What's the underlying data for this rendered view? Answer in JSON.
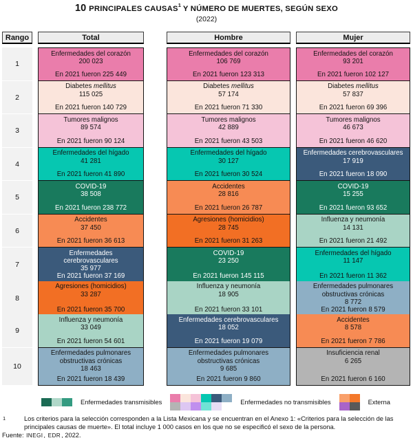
{
  "header": {
    "title_num": "10",
    "title_main": "PRINCIPALES CAUSAS",
    "title_sup": "1",
    "title_rest": "Y NÚMERO DE MUERTES, SEGÚN SEXO",
    "subtitle": "(2022)"
  },
  "table_headers": {
    "rank": "Rango",
    "total": "Total",
    "hombre": "Hombre",
    "mujer": "Mujer"
  },
  "palette": {
    "pink": "#ea7dab",
    "peach": "#fbe5dc",
    "lightpink": "#f5c3d8",
    "teal": "#06c7b1",
    "navy": "#3b5a7b",
    "green": "#197a5d",
    "salmon": "#f78b54",
    "orange": "#f26f24",
    "sage": "#a9d4c5",
    "bluegray": "#8eafc5",
    "gray": "#b4b4b4",
    "leg_green_dark": "#1b6b54",
    "leg_green_light": "#b0d8c9",
    "leg_green_mid": "#349b81",
    "leg_lavender": "#ddc7f2",
    "leg_purple": "#c08fee",
    "leg_cyan": "#6fe3d5",
    "leg_pale_lavender": "#e7ddf5",
    "leg_salmon_light": "#f9a06a",
    "leg_orange": "#f4782a",
    "leg_purple_ext": "#a964c9",
    "leg_darkgray": "#595959"
  },
  "light_text_colors": [
    "navy",
    "green"
  ],
  "chart_data": {
    "type": "table",
    "title": "10 principales causas y número de muertes, según sexo",
    "year": "2022",
    "comparison_prefix": "En 2021 fueron",
    "columns": [
      "Total",
      "Hombre",
      "Mujer"
    ],
    "rows": [
      {
        "rank": "1",
        "total": {
          "cause": "Enfermedades del corazón",
          "value": "200 023",
          "prev": "225 449",
          "color": "pink"
        },
        "hombre": {
          "cause": "Enfermedades del corazón",
          "value": "106 769",
          "prev": "123 313",
          "color": "pink"
        },
        "mujer": {
          "cause": "Enfermedades del corazón",
          "value": "93 201",
          "prev": "102 127",
          "color": "pink"
        }
      },
      {
        "rank": "2",
        "total": {
          "cause": "Diabetes mellitus",
          "italic_part": "mellitus",
          "value": "115 025",
          "prev": "140 729",
          "color": "peach"
        },
        "hombre": {
          "cause": "Diabetes mellitus",
          "italic_part": "mellitus",
          "value": "57 174",
          "prev": "71 330",
          "color": "peach"
        },
        "mujer": {
          "cause": "Diabetes mellitus",
          "italic_part": "mellitus",
          "value": "57 837",
          "prev": "69 396",
          "color": "peach"
        }
      },
      {
        "rank": "3",
        "total": {
          "cause": "Tumores malignos",
          "value": "89 574",
          "prev": "90 124",
          "color": "lightpink"
        },
        "hombre": {
          "cause": "Tumores malignos",
          "value": "42 889",
          "prev": "43 503",
          "color": "lightpink"
        },
        "mujer": {
          "cause": "Tumores malignos",
          "value": "46 673",
          "prev": "46 620",
          "color": "lightpink"
        }
      },
      {
        "rank": "4",
        "total": {
          "cause": "Enfermedades del hígado",
          "value": "41 281",
          "prev": "41 890",
          "color": "teal"
        },
        "hombre": {
          "cause": "Enfermedades del hígado",
          "value": "30 127",
          "prev": "30 524",
          "color": "teal"
        },
        "mujer": {
          "cause": "Enfermedades cerebrovasculares",
          "value": "17 919",
          "prev": "18 090",
          "color": "navy"
        }
      },
      {
        "rank": "5",
        "total": {
          "cause": "COVID-19",
          "value": "38 508",
          "prev": "238 772",
          "color": "green"
        },
        "hombre": {
          "cause": "Accidentes",
          "value": "28 816",
          "prev": "26 787",
          "color": "salmon"
        },
        "mujer": {
          "cause": "COVID-19",
          "value": "15 255",
          "prev": "93 652",
          "color": "green"
        }
      },
      {
        "rank": "6",
        "total": {
          "cause": "Accidentes",
          "value": "37 450",
          "prev": "36 613",
          "color": "salmon"
        },
        "hombre": {
          "cause": "Agresiones (homicidios)",
          "value": "28 745",
          "prev": "31 263",
          "color": "orange"
        },
        "mujer": {
          "cause": "Influenza y neumonía",
          "value": "14 131",
          "prev": "21 492",
          "color": "sage"
        }
      },
      {
        "rank": "7",
        "total": {
          "cause": "Enfermedades cerebrovasculares",
          "value": "35 977",
          "prev": "37 169",
          "color": "navy"
        },
        "hombre": {
          "cause": "COVID-19",
          "value": "23 250",
          "prev": "145 115",
          "color": "green"
        },
        "mujer": {
          "cause": "Enfermedades del hígado",
          "value": "11 147",
          "prev": "11 362",
          "color": "teal"
        }
      },
      {
        "rank": "8",
        "total": {
          "cause": "Agresiones (homicidios)",
          "value": "33 287",
          "prev": "35 700",
          "color": "orange"
        },
        "hombre": {
          "cause": "Influenza y neumonía",
          "value": "18 905",
          "prev": "33 101",
          "color": "sage"
        },
        "mujer": {
          "cause": "Enfermedades pulmonares obstructivas crónicas",
          "value": "8 772",
          "prev": "8 579",
          "color": "bluegray"
        }
      },
      {
        "rank": "9",
        "total": {
          "cause": "Influenza y neumonía",
          "value": "33 049",
          "prev": "54 601",
          "color": "sage"
        },
        "hombre": {
          "cause": "Enfermedades cerebrovasculares",
          "value": "18 052",
          "prev": "19 079",
          "color": "navy"
        },
        "mujer": {
          "cause": "Accidentes",
          "value": "8 578",
          "prev": "7 786",
          "color": "salmon"
        }
      },
      {
        "rank": "10",
        "total": {
          "cause": "Enfermedades pulmonares obstructivas crónicas",
          "value": "18 463",
          "prev": "18 439",
          "color": "bluegray"
        },
        "hombre": {
          "cause": "Enfermedades pulmonares obstructivas crónicas",
          "value": "9 685",
          "prev": "9 860",
          "color": "bluegray"
        },
        "mujer": {
          "cause": "Insuficiencia renal",
          "value": "6 265",
          "prev": "6 160",
          "color": "gray"
        }
      }
    ]
  },
  "legend": [
    {
      "label": "Enfermedades transmisibles",
      "rows": [
        [
          "leg_green_dark",
          "leg_green_light",
          "leg_green_mid"
        ]
      ]
    },
    {
      "label": "Enfermedades no transmisibles",
      "rows": [
        [
          "pink",
          "peach",
          "lightpink",
          "teal",
          "navy",
          "bluegray"
        ],
        [
          "gray",
          "leg_lavender",
          "leg_purple",
          "leg_cyan",
          "leg_pale_lavender"
        ]
      ]
    },
    {
      "label": "Externa",
      "rows": [
        [
          "leg_salmon_light",
          "leg_orange"
        ],
        [
          "leg_purple_ext",
          "leg_darkgray"
        ]
      ]
    }
  ],
  "footnote": {
    "sup": "1",
    "text": "Los criterios para la selección corresponden a la Lista Mexicana y se encuentran en el Anexo 1: «Criterios para la selección de las principales causas de muerte». El total incluye 1 000 casos en los que no se especificó el sexo de la persona.",
    "source_label": "Fuente:",
    "source_abbr1": "INEGI",
    "source_sep1": ",",
    "source_abbr2": "EDR",
    "source_tail": ", 2022."
  }
}
